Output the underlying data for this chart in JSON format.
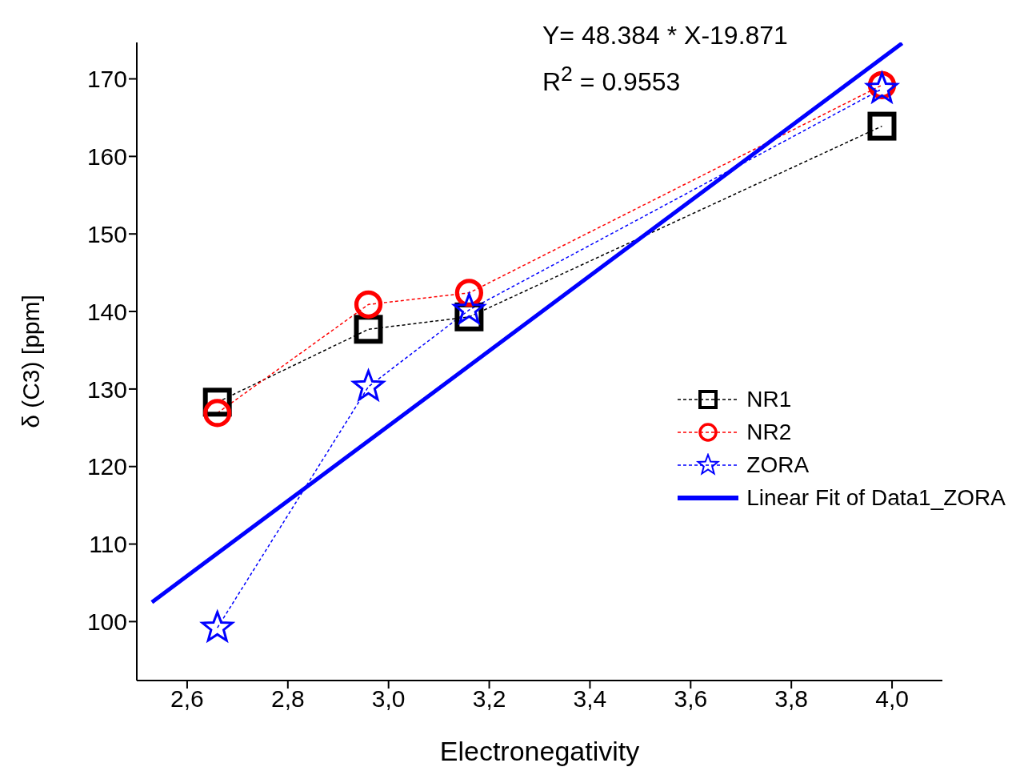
{
  "chart_data": {
    "type": "line",
    "xlabel": "Electronegativity",
    "ylabel": "δ (C3) [ppm]",
    "annotations": [
      "Y= 48.384 * X-19.871",
      "R$^{2}$ = 0.9553"
    ],
    "x": [
      2.66,
      2.96,
      3.16,
      3.98
    ],
    "series": [
      {
        "name": "NR1",
        "color": "#000000",
        "marker": "square",
        "line_style": "dashed",
        "values": [
          128.3,
          137.7,
          139.3,
          163.9
        ]
      },
      {
        "name": "NR2",
        "color": "#ff0000",
        "marker": "circle",
        "line_style": "dashed",
        "values": [
          126.9,
          140.9,
          142.4,
          169.2
        ]
      },
      {
        "name": "ZORA",
        "color": "#0000ff",
        "marker": "star",
        "line_style": "dashed",
        "values": [
          99.2,
          130.3,
          140.2,
          168.7
        ]
      },
      {
        "name": "Linear Fit of Data1_ZORA",
        "color": "#0000ff",
        "marker": "none",
        "line_style": "solid",
        "x": [
          2.53,
          4.02
        ],
        "values": [
          102.5,
          174.6
        ]
      }
    ],
    "xlim": [
      2.5,
      4.1
    ],
    "ylim": [
      92.4,
      174.7
    ],
    "xticks": [
      {
        "value": 2.6,
        "label": "2,6"
      },
      {
        "value": 2.8,
        "label": "2,8"
      },
      {
        "value": 3.0,
        "label": "3,0"
      },
      {
        "value": 3.2,
        "label": "3,2"
      },
      {
        "value": 3.4,
        "label": "3,4"
      },
      {
        "value": 3.6,
        "label": "3,6"
      },
      {
        "value": 3.8,
        "label": "3,8"
      },
      {
        "value": 4.0,
        "label": "4,0"
      }
    ],
    "yticks": [
      100,
      110,
      120,
      130,
      140,
      150,
      160,
      170
    ],
    "legend": "right"
  }
}
